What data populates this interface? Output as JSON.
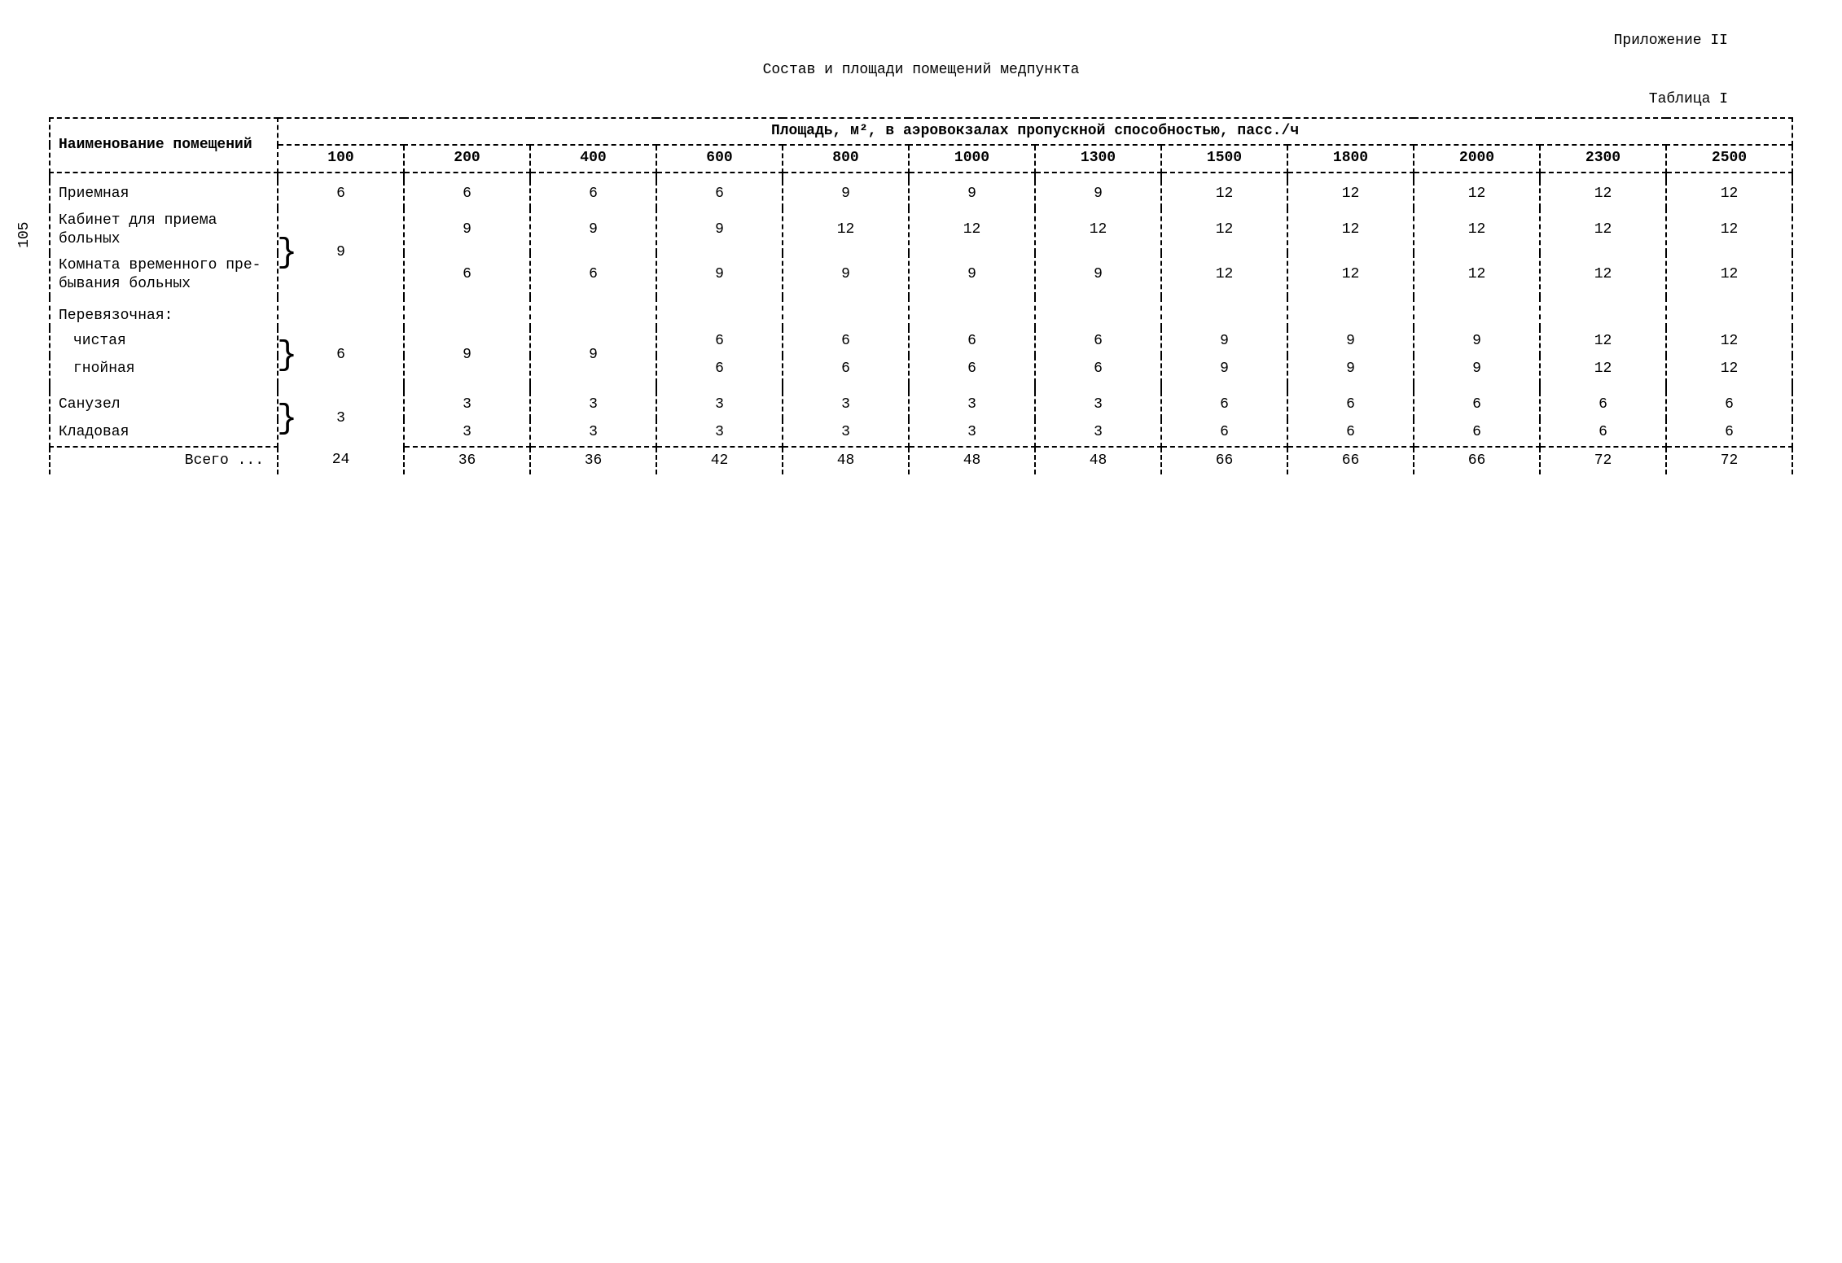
{
  "page_number": "105",
  "appendix": "Приложение II",
  "title": "Состав и площади помещений медпункта",
  "table_label": "Таблица I",
  "header": {
    "name_col": "Наименование помещений",
    "area_span": "Площадь, м², в аэровокзалах пропускной способностью, пасс./ч",
    "caps": [
      "100",
      "200",
      "400",
      "600",
      "800",
      "1000",
      "1300",
      "1500",
      "1800",
      "2000",
      "2300",
      "2500"
    ]
  },
  "rows": [
    {
      "label": "Приемная",
      "vals": [
        "6",
        "6",
        "6",
        "6",
        "9",
        "9",
        "9",
        "12",
        "12",
        "12",
        "12",
        "12"
      ],
      "indent": false
    },
    {
      "label": "Кабинет для приема больных",
      "vals": [
        null,
        "9",
        "9",
        "9",
        "12",
        "12",
        "12",
        "12",
        "12",
        "12",
        "12",
        "12"
      ],
      "indent": false,
      "brace_top": true,
      "brace_val": "9"
    },
    {
      "label": "Комната временного пре-\nбывания больных",
      "vals": [
        null,
        "6",
        "6",
        "9",
        "9",
        "9",
        "9",
        "12",
        "12",
        "12",
        "12",
        "12"
      ],
      "indent": false,
      "brace_bottom": true
    },
    {
      "label": "Перевязочная:",
      "vals": [
        null,
        null,
        null,
        null,
        null,
        null,
        null,
        null,
        null,
        null,
        null,
        null
      ],
      "indent": false,
      "section": true
    },
    {
      "label": "чистая",
      "vals": [
        null,
        null,
        null,
        "6",
        "6",
        "6",
        "6",
        "9",
        "9",
        "9",
        "12",
        "12"
      ],
      "indent": true,
      "brace_top2": true,
      "brace_val2a": "6",
      "brace_val2b": "9",
      "brace_val2c": "9"
    },
    {
      "label": "гнойная",
      "vals": [
        null,
        null,
        null,
        "6",
        "6",
        "6",
        "6",
        "9",
        "9",
        "9",
        "12",
        "12"
      ],
      "indent": true,
      "brace_bottom2": true
    },
    {
      "label": "Санузел",
      "vals": [
        null,
        "3",
        "3",
        "3",
        "3",
        "3",
        "3",
        "6",
        "6",
        "6",
        "6",
        "6"
      ],
      "indent": false,
      "brace_top3": true,
      "brace_val3": "3"
    },
    {
      "label": "Кладовая",
      "vals": [
        null,
        "3",
        "3",
        "3",
        "3",
        "3",
        "3",
        "6",
        "6",
        "6",
        "6",
        "6"
      ],
      "indent": false,
      "brace_bottom3": true
    }
  ],
  "total": {
    "label": "Всего ...",
    "vals": [
      "24",
      "36",
      "36",
      "42",
      "48",
      "48",
      "48",
      "66",
      "66",
      "66",
      "72",
      "72"
    ]
  },
  "colors": {
    "text": "#000000",
    "bg": "#ffffff"
  },
  "font": {
    "family": "Courier New",
    "size_pt": 14
  }
}
